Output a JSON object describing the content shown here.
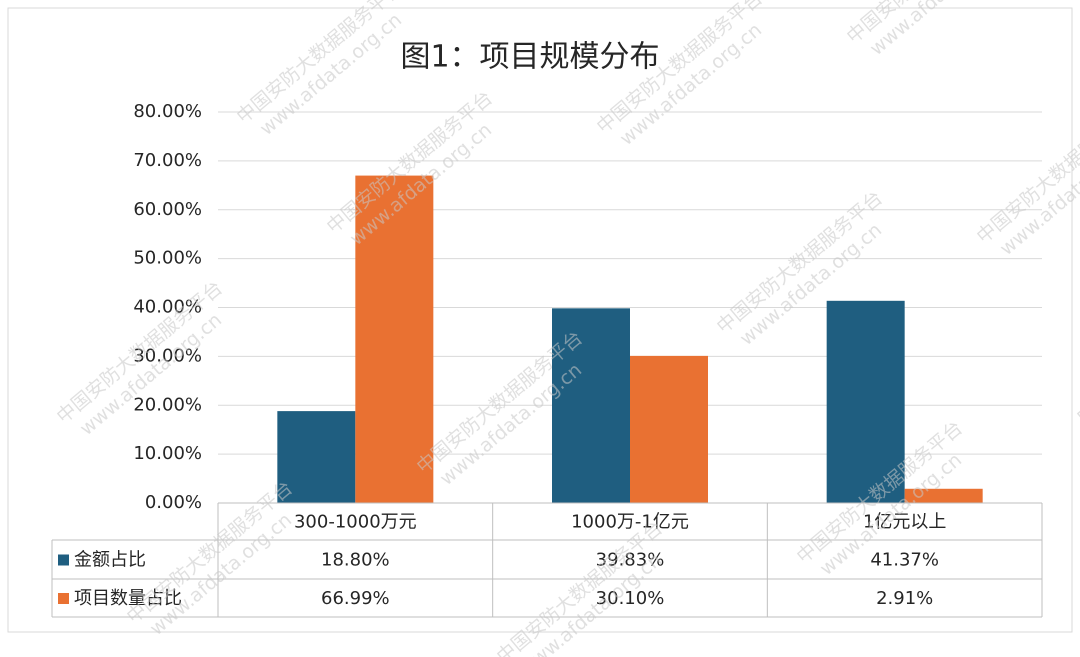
{
  "chart_data": {
    "type": "bar",
    "title": "图1：项目规模分布",
    "categories": [
      "300-1000万元",
      "1000万-1亿元",
      "1亿元以上"
    ],
    "series": [
      {
        "name": "金额占比",
        "color": "#1f5e80",
        "values": [
          18.8,
          39.83,
          41.37
        ],
        "value_labels": [
          "18.80%",
          "39.83%",
          "41.37%"
        ]
      },
      {
        "name": "项目数量占比",
        "color": "#e97132",
        "values": [
          66.99,
          30.1,
          2.91
        ],
        "value_labels": [
          "66.99%",
          "30.10%",
          "2.91%"
        ]
      }
    ],
    "ylim": [
      0,
      80
    ],
    "yticks": [
      {
        "value": 0,
        "label": "0.00%"
      },
      {
        "value": 10,
        "label": "10.00%"
      },
      {
        "value": 20,
        "label": "20.00%"
      },
      {
        "value": 30,
        "label": "30.00%"
      },
      {
        "value": 40,
        "label": "40.00%"
      },
      {
        "value": 50,
        "label": "50.00%"
      },
      {
        "value": 60,
        "label": "60.00%"
      },
      {
        "value": 70,
        "label": "70.00%"
      },
      {
        "value": 80,
        "label": "80.00%"
      }
    ],
    "grid": true,
    "watermark": [
      "中国安防大数据服务平台",
      "www.afdata.org.cn"
    ]
  }
}
